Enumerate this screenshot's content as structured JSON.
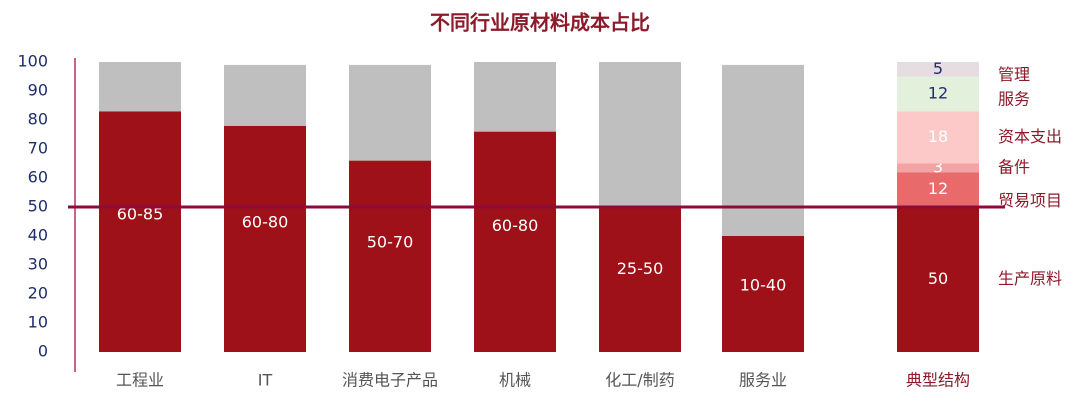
{
  "chart_data": {
    "type": "bar",
    "title": "不同行业原材料成本占比",
    "categories": [
      "工程业",
      "IT",
      "消费电子产品",
      "机械",
      "化工/制药",
      "服务业"
    ],
    "series": [
      {
        "color": "#9e1118",
        "values": [
          83,
          78,
          66,
          76,
          50,
          40
        ]
      },
      {
        "color": "#bfbfbf",
        "values": [
          17,
          21,
          33,
          24,
          50,
          59
        ]
      }
    ],
    "range_labels": [
      "60-85",
      "60-80",
      "50-70",
      "60-80",
      "25-50",
      "10-40"
    ],
    "ylim": [
      0,
      100
    ],
    "yticks": [
      0,
      10,
      20,
      30,
      40,
      50,
      60,
      70,
      80,
      90,
      100
    ],
    "grid": false,
    "reference_line": {
      "value": 50,
      "color": "#8c0a3c"
    },
    "typical": {
      "category": "典型结构",
      "segments": [
        {
          "name": "生产原料",
          "value": 50,
          "color": "#9e1118",
          "label_color": "#ffffff"
        },
        {
          "name": "贸易项目",
          "value": 12,
          "color": "#e86a6b",
          "label_color": "#ffffff"
        },
        {
          "name": "备件",
          "value": 3,
          "color": "#f2a3a3",
          "label_color": "#ffffff"
        },
        {
          "name": "资本支出",
          "value": 18,
          "color": "#fcc8c8",
          "label_color": "#ffffff"
        },
        {
          "name": "服务",
          "value": 12,
          "color": "#e3f0dc",
          "label_color": "#1f2d6b"
        },
        {
          "name": "管理",
          "value": 5,
          "color": "#e6dde3",
          "label_color": "#1f2d6b"
        }
      ]
    }
  }
}
